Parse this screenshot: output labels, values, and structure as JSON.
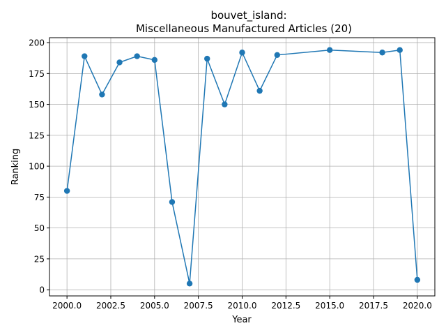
{
  "chart_data": {
    "type": "line",
    "title_line1": "bouvet_island:",
    "title_line2": "Miscellaneous Manufactured Articles (20)",
    "xlabel": "Year",
    "ylabel": "Ranking",
    "xlim": [
      1999.0,
      2021.0
    ],
    "ylim": [
      -5,
      204
    ],
    "x_ticks": [
      2000.0,
      2002.5,
      2005.0,
      2007.5,
      2010.0,
      2012.5,
      2015.0,
      2017.5,
      2020.0
    ],
    "x_tick_labels": [
      "2000.0",
      "2002.5",
      "2005.0",
      "2007.5",
      "2010.0",
      "2012.5",
      "2015.0",
      "2017.5",
      "2020.0"
    ],
    "y_ticks": [
      0,
      25,
      50,
      75,
      100,
      125,
      150,
      175,
      200
    ],
    "y_tick_labels": [
      "0",
      "25",
      "50",
      "75",
      "100",
      "125",
      "150",
      "175",
      "200"
    ],
    "grid": true,
    "line_color": "#1f77b4",
    "series": [
      {
        "x": [
          2000,
          2001,
          2002,
          2003,
          2004,
          2005,
          2006,
          2007,
          2008,
          2009,
          2010,
          2011,
          2012,
          2015,
          2018,
          2019,
          2020
        ],
        "y": [
          80,
          189,
          158,
          184,
          189,
          186,
          71,
          5,
          187,
          150,
          192,
          161,
          190,
          194,
          192,
          194,
          8
        ]
      }
    ]
  }
}
